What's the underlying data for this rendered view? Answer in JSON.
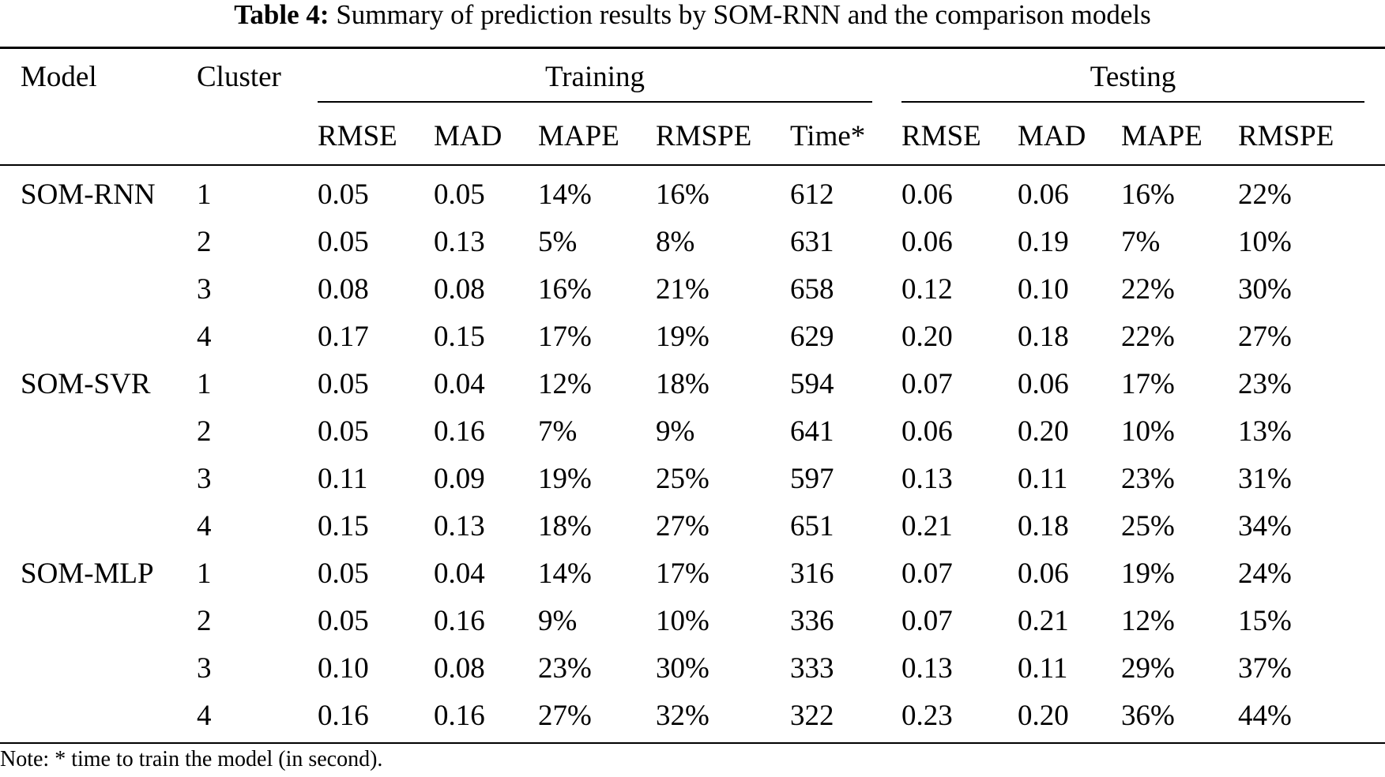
{
  "caption": {
    "label": "Table 4:",
    "text": "Summary of prediction results by SOM-RNN and the comparison models"
  },
  "table": {
    "header": {
      "model": "Model",
      "cluster": "Cluster",
      "training": "Training",
      "testing": "Testing",
      "training_columns": [
        "RMSE",
        "MAD",
        "MAPE",
        "RMSPE",
        "Time*"
      ],
      "testing_columns": [
        "RMSE",
        "MAD",
        "MAPE",
        "RMSPE"
      ]
    },
    "groups": [
      {
        "model": "SOM-RNN",
        "rows": [
          {
            "cluster": "1",
            "training": [
              "0.05",
              "0.05",
              "14%",
              "16%",
              "612"
            ],
            "testing": [
              "0.06",
              "0.06",
              "16%",
              "22%"
            ]
          },
          {
            "cluster": "2",
            "training": [
              "0.05",
              "0.13",
              "5%",
              "8%",
              "631"
            ],
            "testing": [
              "0.06",
              "0.19",
              "7%",
              "10%"
            ]
          },
          {
            "cluster": "3",
            "training": [
              "0.08",
              "0.08",
              "16%",
              "21%",
              "658"
            ],
            "testing": [
              "0.12",
              "0.10",
              "22%",
              "30%"
            ]
          },
          {
            "cluster": "4",
            "training": [
              "0.17",
              "0.15",
              "17%",
              "19%",
              "629"
            ],
            "testing": [
              "0.20",
              "0.18",
              "22%",
              "27%"
            ]
          }
        ]
      },
      {
        "model": "SOM-SVR",
        "rows": [
          {
            "cluster": "1",
            "training": [
              "0.05",
              "0.04",
              "12%",
              "18%",
              "594"
            ],
            "testing": [
              "0.07",
              "0.06",
              "17%",
              "23%"
            ]
          },
          {
            "cluster": "2",
            "training": [
              "0.05",
              "0.16",
              "7%",
              "9%",
              "641"
            ],
            "testing": [
              "0.06",
              "0.20",
              "10%",
              "13%"
            ]
          },
          {
            "cluster": "3",
            "training": [
              "0.11",
              "0.09",
              "19%",
              "25%",
              "597"
            ],
            "testing": [
              "0.13",
              "0.11",
              "23%",
              "31%"
            ]
          },
          {
            "cluster": "4",
            "training": [
              "0.15",
              "0.13",
              "18%",
              "27%",
              "651"
            ],
            "testing": [
              "0.21",
              "0.18",
              "25%",
              "34%"
            ]
          }
        ]
      },
      {
        "model": "SOM-MLP",
        "rows": [
          {
            "cluster": "1",
            "training": [
              "0.05",
              "0.04",
              "14%",
              "17%",
              "316"
            ],
            "testing": [
              "0.07",
              "0.06",
              "19%",
              "24%"
            ]
          },
          {
            "cluster": "2",
            "training": [
              "0.05",
              "0.16",
              "9%",
              "10%",
              "336"
            ],
            "testing": [
              "0.07",
              "0.21",
              "12%",
              "15%"
            ]
          },
          {
            "cluster": "3",
            "training": [
              "0.10",
              "0.08",
              "23%",
              "30%",
              "333"
            ],
            "testing": [
              "0.13",
              "0.11",
              "29%",
              "37%"
            ]
          },
          {
            "cluster": "4",
            "training": [
              "0.16",
              "0.16",
              "27%",
              "32%",
              "322"
            ],
            "testing": [
              "0.23",
              "0.20",
              "36%",
              "44%"
            ]
          }
        ]
      }
    ]
  },
  "note": "Note: * time to train the model (in second)."
}
